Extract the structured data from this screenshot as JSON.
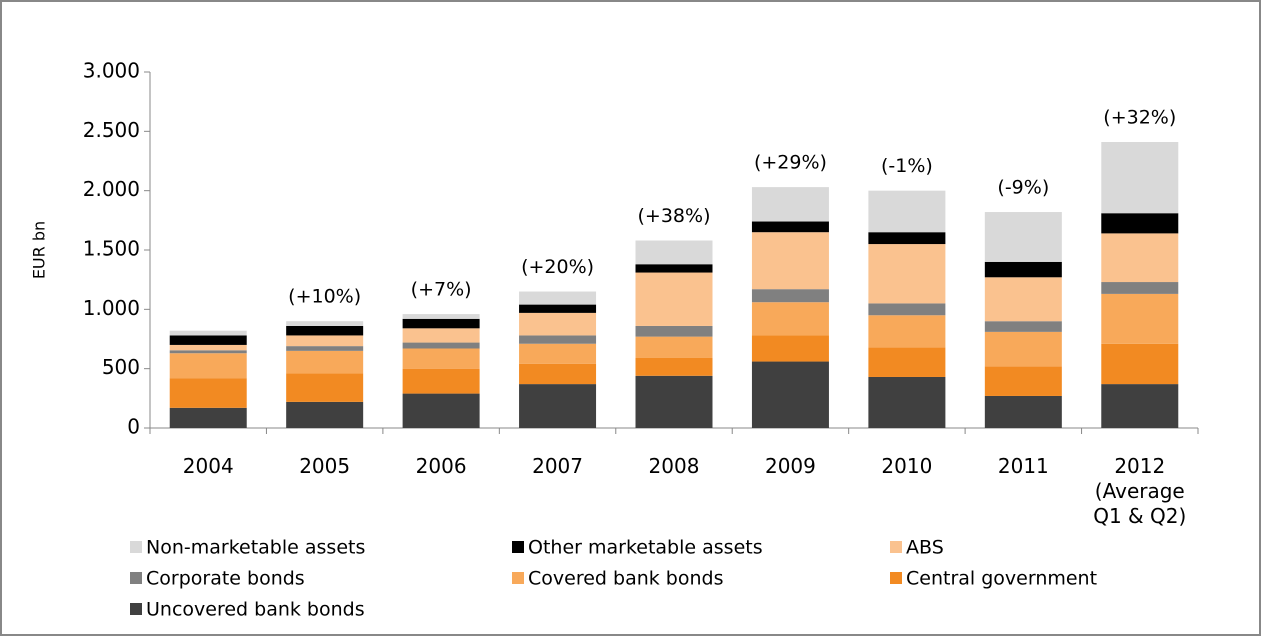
{
  "chart_data": {
    "type": "stacked_bar",
    "y_label": "EUR bn",
    "categories": [
      "2004",
      "2005",
      "2006",
      "2007",
      "2008",
      "2009",
      "2010",
      "2011",
      "2012 (Average Q1 & Q2)"
    ],
    "annotations": [
      null,
      "(+10%)",
      "(+7%)",
      "(+20%)",
      "(+38%)",
      "(+29%)",
      "(-1%)",
      "(-9%)",
      "(+32%)"
    ],
    "series": [
      {
        "name": "Uncovered bank bonds",
        "color": "#404040",
        "values": [
          170,
          220,
          290,
          370,
          440,
          560,
          430,
          270,
          370
        ]
      },
      {
        "name": "Central government",
        "color": "#f28a22",
        "values": [
          250,
          240,
          210,
          170,
          150,
          220,
          250,
          250,
          340
        ]
      },
      {
        "name": "Covered bank bonds",
        "color": "#f8a95a",
        "values": [
          210,
          190,
          170,
          170,
          180,
          280,
          270,
          290,
          420
        ]
      },
      {
        "name": "Corporate bonds",
        "color": "#808080",
        "values": [
          25,
          40,
          50,
          70,
          90,
          110,
          100,
          90,
          100
        ]
      },
      {
        "name": "ABS",
        "color": "#fac28f",
        "values": [
          45,
          90,
          120,
          190,
          450,
          480,
          500,
          370,
          410
        ]
      },
      {
        "name": "Other marketable assets",
        "color": "#000000",
        "values": [
          80,
          80,
          80,
          70,
          70,
          90,
          100,
          130,
          170
        ]
      },
      {
        "name": "Non-marketable assets",
        "color": "#d9d9d9",
        "values": [
          40,
          40,
          40,
          110,
          200,
          290,
          350,
          420,
          600
        ]
      }
    ],
    "ylim": [
      0,
      3000
    ],
    "yticks": [
      0,
      500,
      {
        "value": 1000,
        "label": "1.000"
      },
      {
        "value": 1500,
        "label": "1.500"
      },
      {
        "value": 2000,
        "label": "2.000"
      },
      {
        "value": 2500,
        "label": "2.500"
      },
      {
        "value": 3000,
        "label": "3.000"
      }
    ],
    "grid": false
  }
}
